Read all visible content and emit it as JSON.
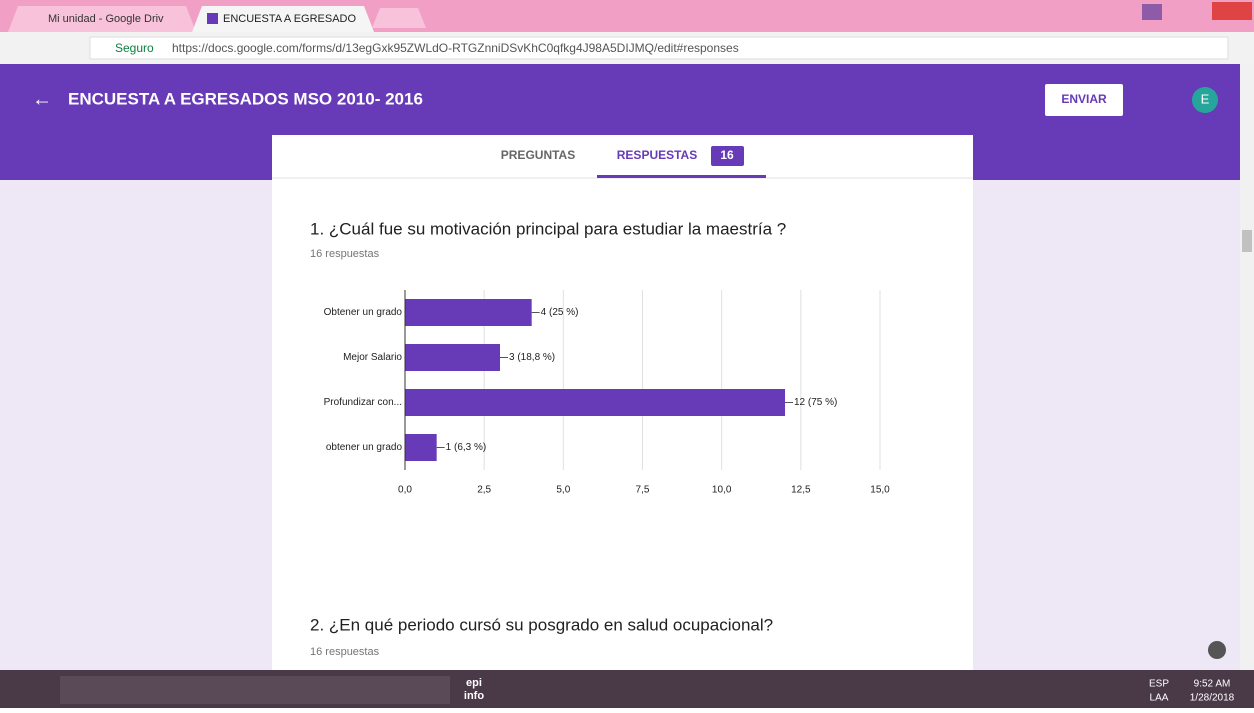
{
  "browser": {
    "tabs": [
      "Mi unidad - Google Driv",
      "ENCUESTA A EGRESADO"
    ],
    "secure": "Seguro",
    "url": "https://docs.google.com/forms/d/13egGxk95ZWLdO-RTGZnniDSvKhC0qfkg4J98A5DIJMQ/edit#responses"
  },
  "header": {
    "title": "ENCUESTA A EGRESADOS  MSO 2010- 2016",
    "send": "ENVIAR",
    "avatar": "E"
  },
  "tabs": {
    "questions": "PREGUNTAS",
    "responses": "RESPUESTAS",
    "count": 16
  },
  "questions": [
    {
      "title": "1. ¿Cuál fue su motivación principal para estudiar la maestría ?",
      "responses": "16 respuestas"
    },
    {
      "title": "2. ¿En qué periodo cursó su posgrado en salud ocupacional?",
      "responses": "16 respuestas"
    }
  ],
  "chart_data": {
    "type": "bar",
    "orientation": "horizontal",
    "categories": [
      "Obtener un grado",
      "Mejor Salario",
      "Profundizar con...",
      "obtener un grado"
    ],
    "values": [
      4,
      3,
      12,
      1
    ],
    "value_labels": [
      "4 (25 %)",
      "3 (18,8 %)",
      "12 (75 %)",
      "1 (6,3 %)"
    ],
    "color": "#673ab7",
    "xlim": [
      0,
      15
    ],
    "xticks": [
      {
        "value": 0,
        "label": "0,0"
      },
      {
        "value": 2.5,
        "label": "2,5"
      },
      {
        "value": 5,
        "label": "5,0"
      },
      {
        "value": 7.5,
        "label": "7,5"
      },
      {
        "value": 10,
        "label": "10,0"
      },
      {
        "value": 12.5,
        "label": "12,5"
      },
      {
        "value": 15,
        "label": "15,0"
      }
    ],
    "grid": true
  },
  "taskbar": {
    "apps": [
      "epi",
      "info"
    ],
    "lang": "ESP",
    "layout": "LAA",
    "time": "9:52 AM",
    "date": "1/28/2018"
  }
}
